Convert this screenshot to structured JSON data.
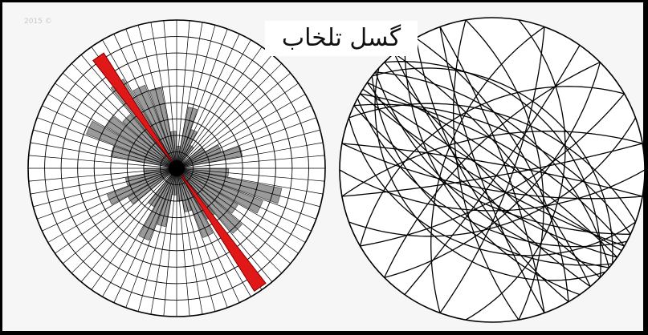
{
  "title": "گسل تلخاب",
  "faint_stamp": "2015 ©",
  "colors": {
    "background": "#f6f6f6",
    "grid_line": "#000000",
    "petal_fill": "#9a9a9a",
    "dominant_petal": "#e01818",
    "great_circle": "#000000"
  },
  "rose_diagram": {
    "type": "rose",
    "dominant_direction": "NW-SE",
    "dominant_color": "red",
    "petals_deg": [
      {
        "azimuth": 5,
        "length": 0.15
      },
      {
        "azimuth": 15,
        "length": 0.42
      },
      {
        "azimuth": 25,
        "length": 0.28
      },
      {
        "azimuth": 35,
        "length": 0.18
      },
      {
        "azimuth": 55,
        "length": 0.22
      },
      {
        "azimuth": 65,
        "length": 0.32
      },
      {
        "azimuth": 75,
        "length": 0.45
      },
      {
        "azimuth": 95,
        "length": 0.35
      },
      {
        "azimuth": 105,
        "length": 0.72
      },
      {
        "azimuth": 115,
        "length": 0.62
      },
      {
        "azimuth": 125,
        "length": 0.48
      },
      {
        "azimuth": 135,
        "length": 0.58
      },
      {
        "azimuth": 145,
        "length": 0.4
      },
      {
        "azimuth": 155,
        "length": 0.5
      },
      {
        "azimuth": 165,
        "length": 0.3
      },
      {
        "azimuth": 175,
        "length": 0.22
      },
      {
        "azimuth": 185,
        "length": 0.18
      },
      {
        "azimuth": 195,
        "length": 0.4
      },
      {
        "azimuth": 205,
        "length": 0.52
      },
      {
        "azimuth": 215,
        "length": 0.3
      },
      {
        "azimuth": 235,
        "length": 0.38
      },
      {
        "azimuth": 245,
        "length": 0.5
      },
      {
        "azimuth": 255,
        "length": 0.35
      },
      {
        "azimuth": 265,
        "length": 0.22
      },
      {
        "azimuth": 285,
        "length": 0.45
      },
      {
        "azimuth": 295,
        "length": 0.65
      },
      {
        "azimuth": 305,
        "length": 0.55
      },
      {
        "azimuth": 315,
        "length": 0.48
      },
      {
        "azimuth": 325,
        "length": 0.7
      },
      {
        "azimuth": 335,
        "length": 0.6
      },
      {
        "azimuth": 345,
        "length": 0.55
      },
      {
        "azimuth": 355,
        "length": 0.25
      }
    ],
    "dominant_petal": {
      "azimuth": 325,
      "half_width": 5,
      "length": 1.0
    }
  },
  "stereonet": {
    "type": "great-circles",
    "planes": [
      {
        "strike": 120,
        "dip": 80
      },
      {
        "strike": 125,
        "dip": 70
      },
      {
        "strike": 130,
        "dip": 60
      },
      {
        "strike": 118,
        "dip": 50
      },
      {
        "strike": 135,
        "dip": 85
      },
      {
        "strike": 140,
        "dip": 75
      },
      {
        "strike": 115,
        "dip": 65
      },
      {
        "strike": 128,
        "dip": 45
      },
      {
        "strike": 300,
        "dip": 70
      },
      {
        "strike": 310,
        "dip": 55
      },
      {
        "strike": 305,
        "dip": 80
      },
      {
        "strike": 295,
        "dip": 60
      },
      {
        "strike": 315,
        "dip": 40
      },
      {
        "strike": 320,
        "dip": 75
      },
      {
        "strike": 110,
        "dip": 35
      },
      {
        "strike": 145,
        "dip": 55
      },
      {
        "strike": 150,
        "dip": 70
      },
      {
        "strike": 100,
        "dip": 75
      },
      {
        "strike": 60,
        "dip": 70
      },
      {
        "strike": 70,
        "dip": 50
      },
      {
        "strike": 80,
        "dip": 85
      },
      {
        "strike": 45,
        "dip": 60
      },
      {
        "strike": 20,
        "dip": 75
      },
      {
        "strike": 10,
        "dip": 40
      },
      {
        "strike": 170,
        "dip": 65
      },
      {
        "strike": 160,
        "dip": 80
      },
      {
        "strike": 200,
        "dip": 55
      },
      {
        "strike": 225,
        "dip": 70
      },
      {
        "strike": 240,
        "dip": 45
      },
      {
        "strike": 260,
        "dip": 65
      },
      {
        "strike": 280,
        "dip": 85
      },
      {
        "strike": 290,
        "dip": 50
      },
      {
        "strike": 330,
        "dip": 65
      },
      {
        "strike": 340,
        "dip": 80
      },
      {
        "strike": 350,
        "dip": 55
      },
      {
        "strike": 132,
        "dip": 30
      },
      {
        "strike": 122,
        "dip": 88
      },
      {
        "strike": 308,
        "dip": 35
      },
      {
        "strike": 90,
        "dip": 60
      },
      {
        "strike": 35,
        "dip": 85
      }
    ]
  }
}
